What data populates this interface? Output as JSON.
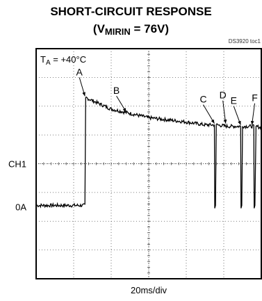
{
  "title_line1": "SHORT-CIRCUIT RESPONSE",
  "title_line2_prefix": "(V",
  "title_line2_sub": "MIRIN",
  "title_line2_suffix": " = 76V)",
  "doc_id": "DS3920 toc1",
  "condition_prefix": "T",
  "condition_sub": "A",
  "condition_suffix": " = +40°C",
  "chart_data": {
    "type": "line",
    "channel_label": "CH1",
    "zero_label": "0A",
    "xlabel": "20ms/div",
    "grid": true,
    "divisions": {
      "x": 6,
      "y": 8
    },
    "ch1_reference_div": 4,
    "zero_level_div": 2.5,
    "series": [
      {
        "points_div": [
          [
            0.0,
            2.55
          ],
          [
            1.3,
            2.55
          ],
          [
            1.32,
            6.3
          ],
          [
            2.0,
            5.9
          ],
          [
            3.0,
            5.6
          ],
          [
            4.0,
            5.45
          ],
          [
            4.5,
            5.35
          ],
          [
            4.75,
            5.35
          ],
          [
            4.76,
            2.45
          ],
          [
            4.78,
            2.55
          ],
          [
            4.8,
            5.35
          ],
          [
            5.1,
            5.3
          ],
          [
            5.45,
            5.3
          ],
          [
            5.46,
            2.45
          ],
          [
            5.48,
            2.55
          ],
          [
            5.5,
            5.3
          ],
          [
            5.8,
            5.3
          ],
          [
            5.81,
            2.45
          ],
          [
            5.83,
            2.55
          ],
          [
            5.86,
            5.3
          ],
          [
            6.0,
            5.25
          ]
        ]
      }
    ],
    "annotations": [
      {
        "label": "A",
        "x_div": 1.3,
        "y_div": 6.3
      },
      {
        "label": "B",
        "x_div": 2.4,
        "y_div": 5.75
      },
      {
        "label": "C",
        "x_div": 4.75,
        "y_div": 5.35
      },
      {
        "label": "D",
        "x_div": 5.05,
        "y_div": 5.35
      },
      {
        "label": "E",
        "x_div": 5.45,
        "y_div": 5.3
      },
      {
        "label": "F",
        "x_div": 5.75,
        "y_div": 5.3
      }
    ],
    "colors": {
      "trace": "#000000",
      "grid": "#555555",
      "frame": "#000000"
    }
  }
}
